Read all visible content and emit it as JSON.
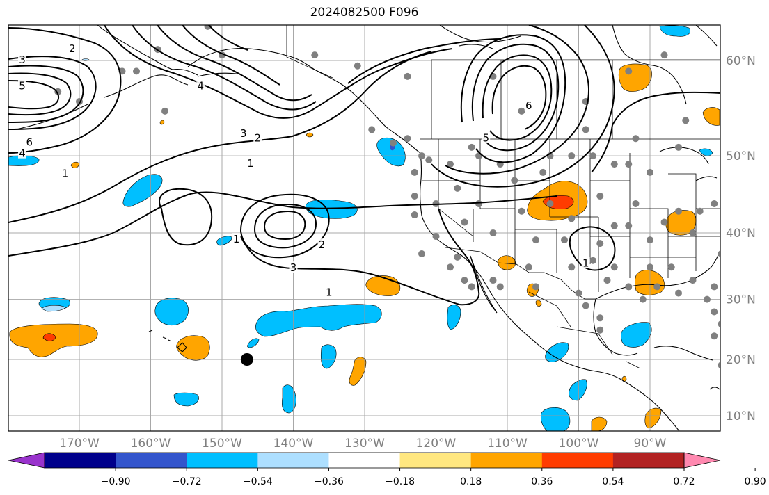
{
  "title": "2024082500 F096",
  "map": {
    "lon_range": [
      -180,
      -80
    ],
    "lat_range": [
      8,
      65
    ],
    "grid": true,
    "lon_ticks": [
      {
        "value": -170,
        "label": "170°W"
      },
      {
        "value": -160,
        "label": "160°W"
      },
      {
        "value": -150,
        "label": "150°W"
      },
      {
        "value": -140,
        "label": "140°W"
      },
      {
        "value": -130,
        "label": "130°W"
      },
      {
        "value": -120,
        "label": "120°W"
      },
      {
        "value": -110,
        "label": "110°W"
      },
      {
        "value": -100,
        "label": "100°W"
      },
      {
        "value": -90,
        "label": "90°W"
      }
    ],
    "lat_ticks": [
      {
        "value": 60,
        "label": "60°N"
      },
      {
        "value": 50,
        "label": "50°N"
      },
      {
        "value": 40,
        "label": "40°N"
      },
      {
        "value": 30,
        "label": "30°N"
      },
      {
        "value": 20,
        "label": "20°N"
      },
      {
        "value": 10,
        "label": "10°N"
      }
    ],
    "contour_labels": [
      {
        "text": "3",
        "lon": -178,
        "lat": 60
      },
      {
        "text": "2",
        "lon": -171,
        "lat": 61
      },
      {
        "text": "5",
        "lon": -178,
        "lat": 57.5
      },
      {
        "text": "6",
        "lon": -177,
        "lat": 51.5
      },
      {
        "text": "4",
        "lon": -178,
        "lat": 50.2
      },
      {
        "text": "1",
        "lon": -172,
        "lat": 47.8
      },
      {
        "text": "4",
        "lon": -153,
        "lat": 57.5
      },
      {
        "text": "3",
        "lon": -147,
        "lat": 52.5
      },
      {
        "text": "2",
        "lon": -145,
        "lat": 52
      },
      {
        "text": "1",
        "lon": -146,
        "lat": 49
      },
      {
        "text": "1",
        "lon": -148,
        "lat": 39
      },
      {
        "text": "2",
        "lon": -136,
        "lat": 38.2
      },
      {
        "text": "3",
        "lon": -140,
        "lat": 34.8
      },
      {
        "text": "1",
        "lon": -135,
        "lat": 31
      },
      {
        "text": "6",
        "lon": -107,
        "lat": 55.5
      },
      {
        "text": "5",
        "lon": -113,
        "lat": 52
      },
      {
        "text": "1",
        "lon": -99,
        "lat": 35.5
      }
    ],
    "highlight_marker": {
      "lon": -146.5,
      "lat": 20
    },
    "station_dots": [
      [
        -175,
        64.5
      ],
      [
        -152,
        63
      ],
      [
        -147,
        64.5
      ],
      [
        -145,
        64
      ],
      [
        -159,
        61
      ],
      [
        -150,
        60.5
      ],
      [
        -137,
        60.5
      ],
      [
        -131,
        59.5
      ],
      [
        -124,
        58.5
      ],
      [
        -113,
        64.5
      ],
      [
        -96,
        64.5
      ],
      [
        -170,
        56
      ],
      [
        -173,
        57
      ],
      [
        -164,
        59
      ],
      [
        -162,
        59
      ],
      [
        -158,
        55
      ],
      [
        -112,
        58.5
      ],
      [
        -108,
        55
      ],
      [
        -99,
        56
      ],
      [
        -85,
        54
      ],
      [
        -88,
        60.5
      ],
      [
        -93,
        59
      ],
      [
        -122,
        50
      ],
      [
        -124,
        52
      ],
      [
        -129,
        53
      ],
      [
        -126,
        51.5
      ],
      [
        -123,
        48
      ],
      [
        -121,
        49.5
      ],
      [
        -118,
        49
      ],
      [
        -114,
        50
      ],
      [
        -117,
        46
      ],
      [
        -115,
        51
      ],
      [
        -111,
        49
      ],
      [
        -109,
        47
      ],
      [
        -105,
        48
      ],
      [
        -104,
        50
      ],
      [
        -101,
        50
      ],
      [
        -99,
        53
      ],
      [
        -98,
        50
      ],
      [
        -95,
        49
      ],
      [
        -93,
        49
      ],
      [
        -92,
        52
      ],
      [
        -90,
        48
      ],
      [
        -86,
        51
      ],
      [
        -123,
        45
      ],
      [
        -123,
        42.5
      ],
      [
        -120,
        44
      ],
      [
        -116,
        41.5
      ],
      [
        -114,
        44
      ],
      [
        -117,
        36.5
      ],
      [
        -112,
        40
      ],
      [
        -108,
        43
      ],
      [
        -104,
        44
      ],
      [
        -101,
        42
      ],
      [
        -102,
        39
      ],
      [
        -106,
        39
      ],
      [
        -98,
        36
      ],
      [
        -97,
        38.5
      ],
      [
        -97,
        45
      ],
      [
        -95,
        41
      ],
      [
        -93,
        41
      ],
      [
        -92,
        44
      ],
      [
        -90,
        39
      ],
      [
        -88,
        41.5
      ],
      [
        -86,
        43
      ],
      [
        -84,
        40
      ],
      [
        -83,
        43
      ],
      [
        -81,
        44
      ],
      [
        -79,
        40
      ],
      [
        -80,
        37
      ],
      [
        -122,
        37
      ],
      [
        -120,
        39.5
      ],
      [
        -118,
        35
      ],
      [
        -116,
        33
      ],
      [
        -112,
        33
      ],
      [
        -107,
        35
      ],
      [
        -106,
        32
      ],
      [
        -101,
        35
      ],
      [
        -100,
        31
      ],
      [
        -99,
        29
      ],
      [
        -96,
        33
      ],
      [
        -97,
        27
      ],
      [
        -97,
        25
      ],
      [
        -95,
        35
      ],
      [
        -93,
        32
      ],
      [
        -91,
        30
      ],
      [
        -90,
        35
      ],
      [
        -89,
        32
      ],
      [
        -87,
        35
      ],
      [
        -86,
        31
      ],
      [
        -84,
        33
      ],
      [
        -81,
        32
      ],
      [
        -81,
        28
      ],
      [
        -80,
        26
      ],
      [
        -82,
        30
      ],
      [
        -80,
        19
      ],
      [
        -81,
        24
      ],
      [
        -115,
        32
      ],
      [
        -111,
        32
      ]
    ],
    "colors": {
      "cyan": "#00bfff",
      "light_blue": "#addfff",
      "orange": "#ffa500",
      "red_orange": "#ff3c00",
      "dot": "#808080",
      "contour": "#000000"
    }
  },
  "colorbar": {
    "colors": [
      "#9933cc",
      "#00008b",
      "#3355cc",
      "#00bfff",
      "#addfff",
      "#ffffff",
      "#ffe780",
      "#ffa500",
      "#ff3c00",
      "#b22222",
      "#ff89b0"
    ],
    "ticks": [
      "−0.90",
      "−0.72",
      "−0.54",
      "−0.36",
      "−0.18",
      "0.18",
      "0.36",
      "0.54",
      "0.72",
      "0.90"
    ],
    "extend": "both"
  }
}
